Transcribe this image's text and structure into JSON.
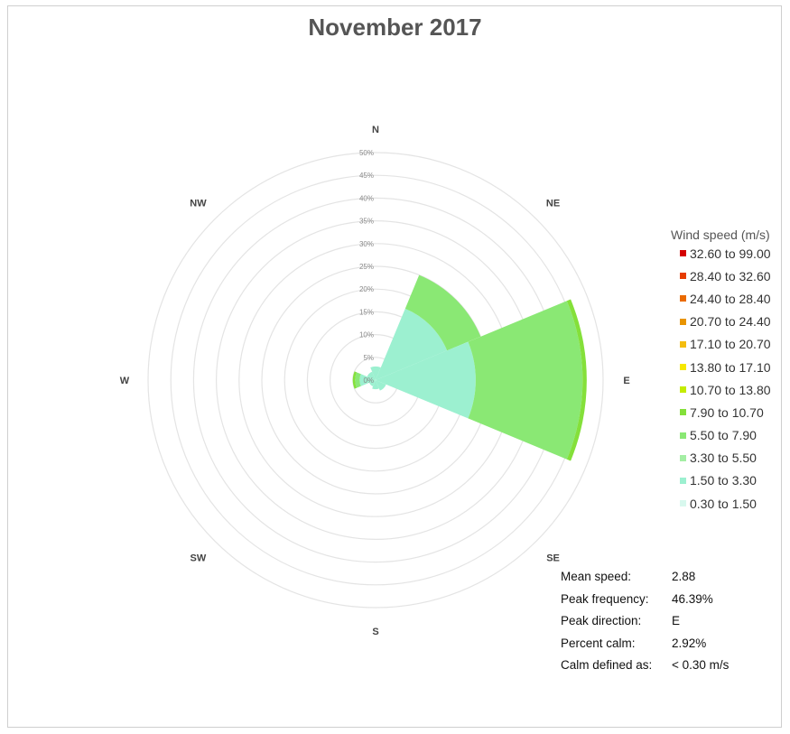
{
  "chart_data": {
    "type": "wind-rose",
    "title": "November 2017",
    "radial_axis": {
      "max": 50,
      "ticks": [
        "0%",
        "5%",
        "10%",
        "15%",
        "20%",
        "25%",
        "30%",
        "35%",
        "40%",
        "45%",
        "50%"
      ]
    },
    "directions": [
      "N",
      "NE",
      "E",
      "SE",
      "S",
      "SW",
      "W",
      "NW"
    ],
    "speed_bins": [
      {
        "label": "32.60 to 99.00",
        "color": "#d40000"
      },
      {
        "label": "28.40 to 32.60",
        "color": "#e63c00"
      },
      {
        "label": "24.40 to 28.40",
        "color": "#ea6a00"
      },
      {
        "label": "20.70 to 24.40",
        "color": "#e89400"
      },
      {
        "label": "17.10 to 20.70",
        "color": "#f4bd10"
      },
      {
        "label": "13.80 to 17.10",
        "color": "#f6e800"
      },
      {
        "label": "10.70 to 13.80",
        "color": "#c4ec00"
      },
      {
        "label": "7.90 to 10.70",
        "color": "#84e03a"
      },
      {
        "label": "5.50 to 7.90",
        "color": "#8ae874"
      },
      {
        "label": "3.30 to 5.50",
        "color": "#a4eea4"
      },
      {
        "label": "1.50 to 3.30",
        "color": "#9cf0d0"
      },
      {
        "label": "0.30 to 1.50",
        "color": "#d8f8ee"
      }
    ],
    "sectors": [
      {
        "direction": "N",
        "stack": [
          {
            "bin": "1.50 to 3.30",
            "value": 3.0
          }
        ]
      },
      {
        "direction": "NE",
        "stack": [
          {
            "bin": "1.50 to 3.30",
            "value": 17.0
          },
          {
            "bin": "5.50 to 7.90",
            "value": 8.0
          }
        ]
      },
      {
        "direction": "E",
        "stack": [
          {
            "bin": "1.50 to 3.30",
            "value": 22.0
          },
          {
            "bin": "5.50 to 7.90",
            "value": 23.5
          },
          {
            "bin": "7.90 to 10.70",
            "value": 0.9
          }
        ]
      },
      {
        "direction": "SE",
        "stack": [
          {
            "bin": "1.50 to 3.30",
            "value": 2.5
          }
        ]
      },
      {
        "direction": "S",
        "stack": [
          {
            "bin": "1.50 to 3.30",
            "value": 2.0
          }
        ]
      },
      {
        "direction": "SW",
        "stack": [
          {
            "bin": "1.50 to 3.30",
            "value": 1.5
          }
        ]
      },
      {
        "direction": "W",
        "stack": [
          {
            "bin": "1.50 to 3.30",
            "value": 3.5
          },
          {
            "bin": "5.50 to 7.90",
            "value": 1.0
          },
          {
            "bin": "7.90 to 10.70",
            "value": 0.5
          }
        ]
      },
      {
        "direction": "NW",
        "stack": [
          {
            "bin": "1.50 to 3.30",
            "value": 2.0
          }
        ]
      }
    ],
    "legend_title": "Wind speed (m/s)",
    "legend_position": "right",
    "grid": true
  },
  "stats": [
    {
      "label": "Mean speed:",
      "value": "2.88"
    },
    {
      "label": "Peak frequency:",
      "value": "46.39%"
    },
    {
      "label": "Peak direction:",
      "value": "E"
    },
    {
      "label": "Percent calm:",
      "value": "2.92%"
    },
    {
      "label": "Calm defined as:",
      "value": "< 0.30 m/s"
    }
  ]
}
